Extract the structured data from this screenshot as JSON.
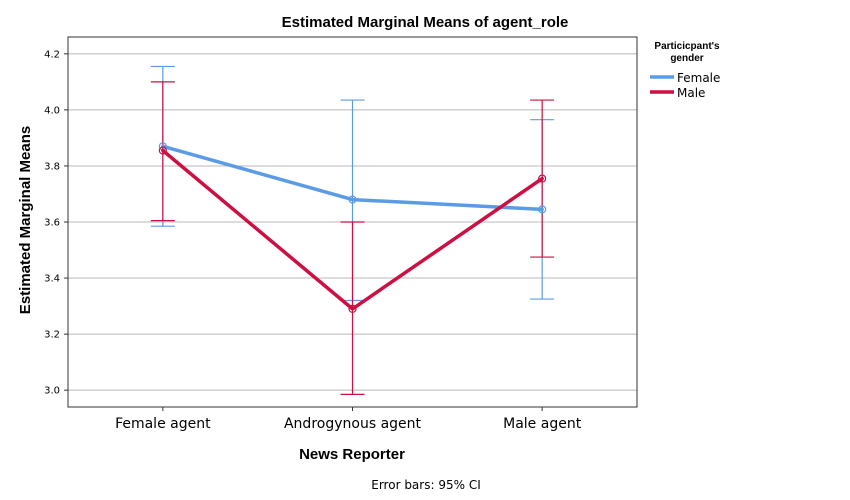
{
  "chart_data": {
    "type": "line",
    "title": "Estimated Marginal Means of agent_role",
    "xlabel": "News Reporter",
    "ylabel": "Estimated Marginal Means",
    "categories": [
      "Female agent",
      "Androgynous agent",
      "Male agent"
    ],
    "ylim": [
      2.94,
      4.26
    ],
    "yticks": [
      "3.0",
      "3.2",
      "3.4",
      "3.6",
      "3.8",
      "4.0",
      "4.2"
    ],
    "grid": true,
    "legend": {
      "title_line1": "Particicpant's",
      "title_line2": "gender",
      "placement": "right"
    },
    "footnote": "Error bars: 95% CI",
    "series": [
      {
        "name": "Female",
        "color": "#5b9be6",
        "values": [
          3.87,
          3.68,
          3.645
        ],
        "ci_low": [
          3.585,
          3.32,
          3.325
        ],
        "ci_high": [
          4.155,
          4.035,
          3.965
        ]
      },
      {
        "name": "Male",
        "color": "#cc1042",
        "values": [
          3.855,
          3.29,
          3.755
        ],
        "ci_low": [
          3.605,
          2.985,
          3.475
        ],
        "ci_high": [
          4.1,
          3.6,
          4.035
        ]
      }
    ]
  }
}
